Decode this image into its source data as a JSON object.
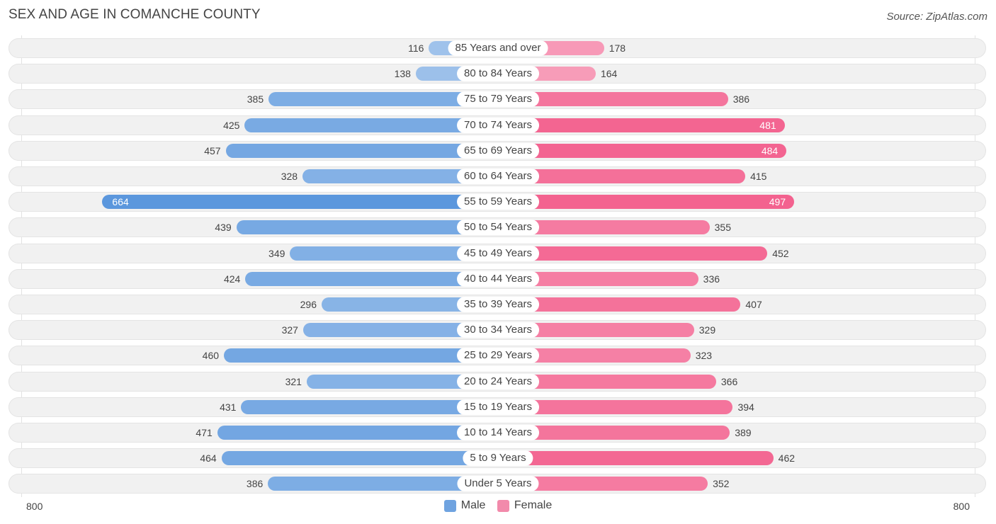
{
  "chart_data": {
    "type": "bar",
    "orientation": "horizontal-diverging",
    "title": "SEX AND AGE IN COMANCHE COUNTY",
    "source": "Source: ZipAtlas.com",
    "categories": [
      "85 Years and over",
      "80 to 84 Years",
      "75 to 79 Years",
      "70 to 74 Years",
      "65 to 69 Years",
      "60 to 64 Years",
      "55 to 59 Years",
      "50 to 54 Years",
      "45 to 49 Years",
      "40 to 44 Years",
      "35 to 39 Years",
      "30 to 34 Years",
      "25 to 29 Years",
      "20 to 24 Years",
      "15 to 19 Years",
      "10 to 14 Years",
      "5 to 9 Years",
      "Under 5 Years"
    ],
    "series": [
      {
        "name": "Male",
        "color": "#6fa3e0",
        "values": [
          116,
          138,
          385,
          425,
          457,
          328,
          664,
          439,
          349,
          424,
          296,
          327,
          460,
          321,
          431,
          471,
          464,
          386
        ]
      },
      {
        "name": "Female",
        "color": "#f28aab",
        "values": [
          178,
          164,
          386,
          481,
          484,
          415,
          497,
          355,
          452,
          336,
          407,
          329,
          323,
          366,
          394,
          389,
          462,
          352
        ]
      }
    ],
    "xlim": [
      -800,
      800
    ],
    "axis_labels": {
      "left": "800",
      "right": "800"
    },
    "legend": [
      "Male",
      "Female"
    ]
  }
}
